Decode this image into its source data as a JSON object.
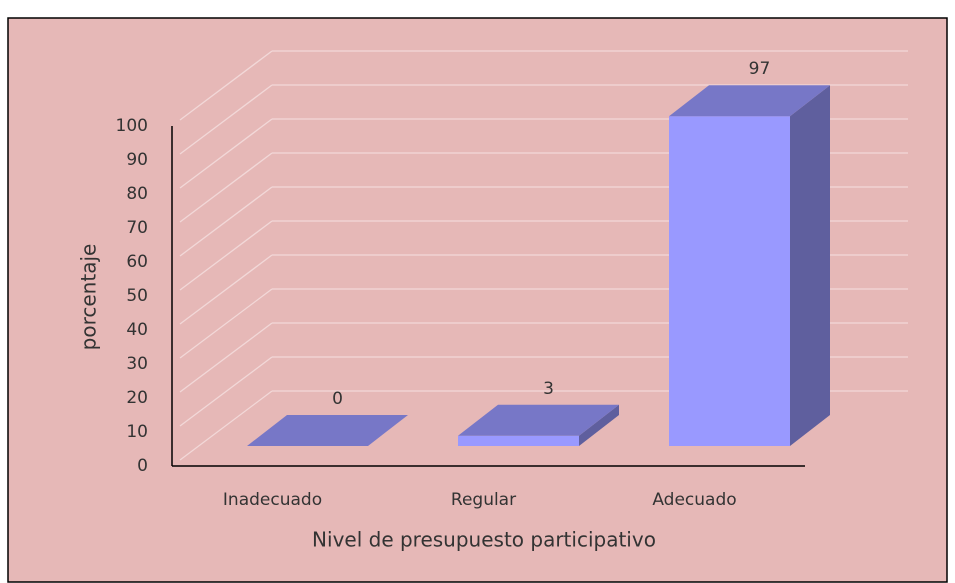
{
  "chart_data": {
    "type": "bar3d",
    "categories": [
      "Inadecuado",
      "Regular",
      "Adecuado"
    ],
    "values": [
      0,
      3,
      97
    ],
    "color": "#9999ff",
    "ylim": [
      0,
      100
    ],
    "yticks": [
      0,
      10,
      20,
      30,
      40,
      50,
      60,
      70,
      80,
      90,
      100
    ],
    "x_label": "Nivel de presupuesto participativo",
    "y_label": "porcentaje",
    "grid": true
  }
}
